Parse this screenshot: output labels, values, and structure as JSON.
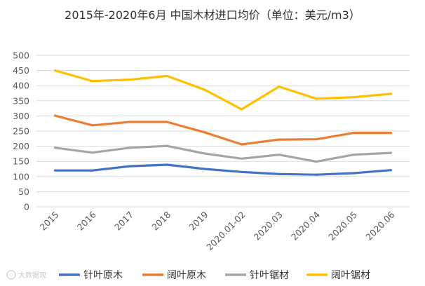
{
  "chart_data": {
    "type": "line",
    "title": "2015年-2020年6月 中国木材进口均价（单位：美元/m3）",
    "categories": [
      "2015",
      "2016",
      "2017",
      "2018",
      "2019",
      "2020.01-02",
      "2020.03",
      "2020.04",
      "2020.05",
      "2020.06"
    ],
    "ylim": [
      0,
      500
    ],
    "yticks": [
      0,
      50,
      100,
      150,
      200,
      250,
      300,
      350,
      400,
      450,
      500
    ],
    "grid": true,
    "legend": "bottom",
    "series": [
      {
        "name": "针叶原木",
        "color": "#4472c4",
        "values": [
          120,
          120,
          134,
          139,
          125,
          115,
          108,
          106,
          111,
          121
        ]
      },
      {
        "name": "阔叶原木",
        "color": "#ed7d31",
        "values": [
          301,
          269,
          280,
          280,
          246,
          206,
          222,
          223,
          244,
          244
        ]
      },
      {
        "name": "针叶锯材",
        "color": "#a5a5a5",
        "values": [
          195,
          179,
          195,
          201,
          176,
          159,
          172,
          149,
          172,
          178
        ]
      },
      {
        "name": "阔叶锯材",
        "color": "#ffc000",
        "values": [
          450,
          415,
          420,
          432,
          387,
          322,
          397,
          357,
          362,
          373
        ]
      }
    ]
  },
  "watermark": "大数据观"
}
